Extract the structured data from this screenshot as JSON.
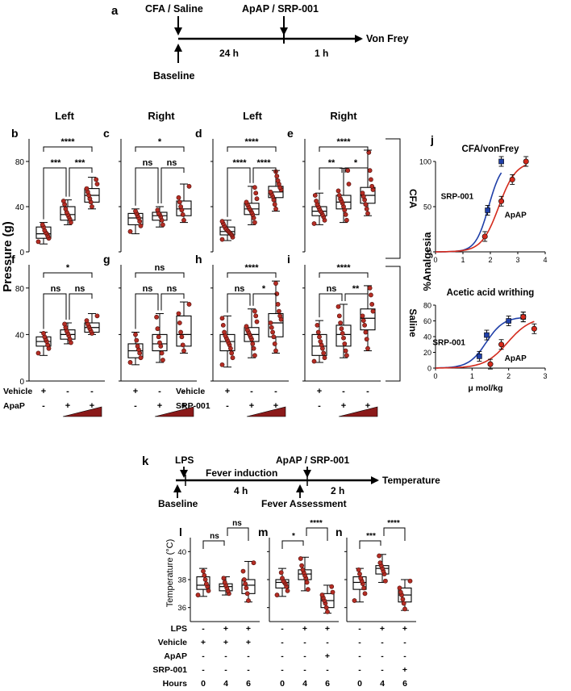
{
  "timeline_a": {
    "letter": "a",
    "label_top_left": "CFA / Saline",
    "label_top_right": "ApAP / SRP-001",
    "label_end": "Von Frey",
    "label_bottom": "Baseline",
    "seg1": "24 h",
    "seg2": "1 h"
  },
  "column_titles": [
    "Left",
    "Right",
    "Left",
    "Right"
  ],
  "row_labels": {
    "top": "CFA",
    "bottom": "Saline"
  },
  "y_axis_title": "Pressure (g)",
  "vf_ticks": [
    "0",
    "40",
    "80"
  ],
  "vf_panels": [
    {
      "letter": "b",
      "sig": [
        "****",
        "***",
        "***"
      ],
      "boxes": [
        {
          "q1": 12,
          "med": 16,
          "q3": 22,
          "lo": 7,
          "hi": 26,
          "pts": [
            9,
            12,
            14,
            16,
            17,
            19,
            22,
            24
          ]
        },
        {
          "q1": 28,
          "med": 33,
          "q3": 40,
          "lo": 24,
          "hi": 46,
          "pts": [
            26,
            29,
            31,
            33,
            35,
            38,
            42,
            45
          ]
        },
        {
          "q1": 44,
          "med": 50,
          "q3": 56,
          "lo": 38,
          "hi": 66,
          "pts": [
            40,
            44,
            47,
            50,
            53,
            56,
            60,
            64
          ]
        }
      ]
    },
    {
      "letter": "c",
      "sig": [
        "*",
        "ns",
        "ns"
      ],
      "boxes": [
        {
          "q1": 24,
          "med": 30,
          "q3": 34,
          "lo": 16,
          "hi": 38,
          "pts": [
            18,
            23,
            27,
            30,
            32,
            34,
            36
          ]
        },
        {
          "q1": 28,
          "med": 32,
          "q3": 35,
          "lo": 22,
          "hi": 40,
          "pts": [
            24,
            28,
            31,
            33,
            34,
            37
          ]
        },
        {
          "q1": 32,
          "med": 38,
          "q3": 45,
          "lo": 26,
          "hi": 60,
          "pts": [
            28,
            33,
            37,
            40,
            44,
            48,
            58
          ]
        }
      ]
    },
    {
      "letter": "d",
      "sig": [
        "****",
        "****",
        "****"
      ],
      "boxes": [
        {
          "q1": 15,
          "med": 18,
          "q3": 22,
          "lo": 10,
          "hi": 28,
          "pts": [
            11,
            13,
            15,
            16,
            17,
            18,
            19,
            20,
            21,
            23,
            25,
            27
          ]
        },
        {
          "q1": 33,
          "med": 38,
          "q3": 43,
          "lo": 24,
          "hi": 58,
          "pts": [
            26,
            30,
            33,
            35,
            37,
            38,
            40,
            42,
            44,
            47,
            52,
            57
          ]
        },
        {
          "q1": 48,
          "med": 53,
          "q3": 58,
          "lo": 36,
          "hi": 72,
          "pts": [
            38,
            42,
            46,
            49,
            51,
            53,
            55,
            57,
            60,
            63,
            67,
            71
          ]
        }
      ]
    },
    {
      "letter": "e",
      "sig": [
        "****",
        "**",
        "*"
      ],
      "boxes": [
        {
          "q1": 32,
          "med": 36,
          "q3": 40,
          "lo": 24,
          "hi": 52,
          "pts": [
            25,
            28,
            31,
            33,
            35,
            36,
            38,
            40,
            42,
            45,
            50
          ]
        },
        {
          "q1": 38,
          "med": 44,
          "q3": 50,
          "lo": 26,
          "hi": 74,
          "pts": [
            28,
            33,
            37,
            40,
            43,
            45,
            47,
            50,
            54,
            60,
            72
          ]
        },
        {
          "q1": 43,
          "med": 50,
          "q3": 57,
          "lo": 32,
          "hi": 90,
          "pts": [
            34,
            38,
            42,
            46,
            49,
            52,
            55,
            58,
            64,
            72,
            88
          ]
        }
      ]
    },
    {
      "letter": "f",
      "sig": [
        "*",
        "ns",
        "ns"
      ],
      "boxes": [
        {
          "q1": 30,
          "med": 34,
          "q3": 38,
          "lo": 22,
          "hi": 42,
          "pts": [
            24,
            28,
            31,
            34,
            36,
            38,
            41
          ]
        },
        {
          "q1": 36,
          "med": 40,
          "q3": 44,
          "lo": 32,
          "hi": 50,
          "pts": [
            33,
            36,
            39,
            41,
            43,
            46,
            49
          ]
        },
        {
          "q1": 42,
          "med": 46,
          "q3": 50,
          "lo": 40,
          "hi": 58,
          "pts": [
            41,
            43,
            45,
            47,
            49,
            52,
            56
          ]
        }
      ]
    },
    {
      "letter": "g",
      "sig": [
        "ns",
        "ns",
        "ns"
      ],
      "boxes": [
        {
          "q1": 20,
          "med": 26,
          "q3": 32,
          "lo": 14,
          "hi": 42,
          "pts": [
            16,
            20,
            24,
            27,
            30,
            35,
            40
          ]
        },
        {
          "q1": 26,
          "med": 32,
          "q3": 40,
          "lo": 16,
          "hi": 58,
          "pts": [
            18,
            24,
            30,
            33,
            38,
            45,
            55
          ]
        },
        {
          "q1": 30,
          "med": 40,
          "q3": 56,
          "lo": 24,
          "hi": 68,
          "pts": [
            26,
            31,
            38,
            42,
            50,
            58,
            66
          ]
        }
      ]
    },
    {
      "letter": "h",
      "sig": [
        "****",
        "ns",
        "*"
      ],
      "boxes": [
        {
          "q1": 26,
          "med": 34,
          "q3": 40,
          "lo": 12,
          "hi": 56,
          "pts": [
            14,
            20,
            24,
            28,
            31,
            33,
            35,
            37,
            39,
            42,
            48,
            54
          ]
        },
        {
          "q1": 34,
          "med": 40,
          "q3": 46,
          "lo": 20,
          "hi": 62,
          "pts": [
            22,
            28,
            32,
            36,
            38,
            40,
            42,
            44,
            47,
            51,
            56,
            60
          ]
        },
        {
          "q1": 38,
          "med": 50,
          "q3": 58,
          "lo": 24,
          "hi": 86,
          "pts": [
            26,
            32,
            38,
            42,
            46,
            50,
            53,
            56,
            60,
            66,
            75,
            84
          ]
        }
      ]
    },
    {
      "letter": "i",
      "sig": [
        "****",
        "ns",
        "**"
      ],
      "boxes": [
        {
          "q1": 22,
          "med": 30,
          "q3": 40,
          "lo": 16,
          "hi": 52,
          "pts": [
            17,
            20,
            24,
            28,
            31,
            34,
            38,
            42,
            48
          ]
        },
        {
          "q1": 30,
          "med": 40,
          "q3": 48,
          "lo": 20,
          "hi": 66,
          "pts": [
            22,
            26,
            32,
            37,
            41,
            45,
            50,
            56,
            64
          ]
        },
        {
          "q1": 44,
          "med": 54,
          "q3": 62,
          "lo": 26,
          "hi": 82,
          "pts": [
            28,
            36,
            42,
            48,
            52,
            56,
            60,
            66,
            74,
            80
          ]
        }
      ]
    }
  ],
  "treatment_table": {
    "rows": [
      {
        "label": "Vehicle",
        "left": [
          "+",
          "-",
          "-"
        ],
        "right": [
          "+",
          "-",
          "-"
        ],
        "label_right": "Vehicle"
      },
      {
        "label": "ApaP",
        "left": [
          "-",
          "+",
          "+"
        ],
        "right": [
          "-",
          "+",
          "+"
        ],
        "label_right": "SRP-001"
      }
    ]
  },
  "panel_j": {
    "letter": "j",
    "chart_data": [
      {
        "type": "scatter",
        "title": "CFA/vonFrey",
        "xlim": [
          0,
          4
        ],
        "ylim": [
          0,
          100
        ],
        "xticks": [
          "0",
          "1",
          "2",
          "3",
          "4"
        ],
        "yticks": [
          "0",
          "50",
          "100"
        ],
        "series": [
          {
            "name": "SRP-001",
            "color": "#1f3fa8",
            "x": [
              1.9,
              2.4
            ],
            "y": [
              46,
              100
            ]
          },
          {
            "name": "ApAP",
            "color": "#d42a1c",
            "x": [
              1.8,
              2.4,
              2.8,
              3.3
            ],
            "y": [
              17,
              56,
              80,
              100
            ]
          }
        ]
      },
      {
        "type": "scatter",
        "title": "Acetic acid writhing",
        "xlim": [
          0,
          3
        ],
        "ylim": [
          0,
          80
        ],
        "xticks": [
          "0",
          "1",
          "2",
          "3"
        ],
        "yticks": [
          "0",
          "20",
          "40",
          "60",
          "80"
        ],
        "xlabel": "μ mol/kg",
        "series": [
          {
            "name": "SRP-001",
            "color": "#1f3fa8",
            "x": [
              1.2,
              1.4,
              2.0,
              2.4
            ],
            "y": [
              15,
              42,
              60,
              65
            ]
          },
          {
            "name": "ApAP",
            "color": "#d42a1c",
            "x": [
              1.5,
              1.8,
              2.4,
              2.7
            ],
            "y": [
              5,
              30,
              65,
              50
            ]
          }
        ]
      }
    ],
    "ylabel": "%Analgesia"
  },
  "timeline_k": {
    "letter": "k",
    "lps": "LPS",
    "baseline": "Baseline",
    "fever_induction": "Fever induction",
    "seg1": "4 h",
    "fever_assessment": "Fever Assessment",
    "drug": "ApAP / SRP-001",
    "seg2": "2 h",
    "end": "Temperature"
  },
  "temp_axis_title": "Temperature (°C)",
  "temp_ticks": [
    "36",
    "38",
    "40"
  ],
  "temp_panels": [
    {
      "letter": "l",
      "sig": [
        "ns",
        "ns"
      ],
      "sig_type": "adjacent",
      "boxes": [
        {
          "q1": 37.3,
          "med": 37.6,
          "q3": 38.2,
          "lo": 36.8,
          "hi": 38.8,
          "pts": [
            36.9,
            37.2,
            37.5,
            37.7,
            38.0,
            38.3,
            38.6
          ]
        },
        {
          "q1": 37.2,
          "med": 37.5,
          "q3": 37.7,
          "lo": 36.9,
          "hi": 38.2,
          "pts": [
            37.0,
            37.2,
            37.4,
            37.6,
            37.8,
            38.1
          ]
        },
        {
          "q1": 37.0,
          "med": 37.6,
          "q3": 38.0,
          "lo": 36.4,
          "hi": 39.3,
          "pts": [
            36.5,
            37.0,
            37.4,
            37.7,
            38.0,
            38.6,
            39.2
          ]
        }
      ]
    },
    {
      "letter": "m",
      "sig": [
        "*",
        "****"
      ],
      "sig_type": "adjacent",
      "boxes": [
        {
          "q1": 37.4,
          "med": 37.8,
          "q3": 38.0,
          "lo": 36.8,
          "hi": 38.8,
          "pts": [
            36.9,
            37.2,
            37.5,
            37.7,
            37.8,
            37.9,
            38.1,
            38.5
          ]
        },
        {
          "q1": 38.0,
          "med": 38.4,
          "q3": 38.7,
          "lo": 37.2,
          "hi": 39.6,
          "pts": [
            37.3,
            37.8,
            38.1,
            38.3,
            38.5,
            38.7,
            39.0,
            39.5
          ]
        },
        {
          "q1": 36.0,
          "med": 36.5,
          "q3": 37.0,
          "lo": 35.6,
          "hi": 37.6,
          "pts": [
            35.7,
            36.0,
            36.3,
            36.5,
            36.7,
            36.9,
            37.1,
            37.5
          ]
        }
      ]
    },
    {
      "letter": "n",
      "sig": [
        "***",
        "****"
      ],
      "sig_type": "adjacent",
      "boxes": [
        {
          "q1": 37.3,
          "med": 37.8,
          "q3": 38.2,
          "lo": 36.4,
          "hi": 38.8,
          "pts": [
            36.5,
            37.0,
            37.4,
            37.7,
            37.9,
            38.1,
            38.4,
            38.7
          ]
        },
        {
          "q1": 38.4,
          "med": 38.8,
          "q3": 39.0,
          "lo": 37.8,
          "hi": 39.8,
          "pts": [
            37.9,
            38.4,
            38.6,
            38.8,
            39.0,
            39.2,
            39.7
          ]
        },
        {
          "q1": 36.4,
          "med": 36.9,
          "q3": 37.4,
          "lo": 35.8,
          "hi": 38.0,
          "pts": [
            35.9,
            36.3,
            36.6,
            36.9,
            37.1,
            37.4,
            37.9
          ]
        }
      ]
    }
  ],
  "temp_table": {
    "rows": [
      {
        "label": "LPS",
        "cols": [
          [
            "-",
            "+",
            "+"
          ],
          [
            "-",
            "+",
            "+"
          ],
          [
            "-",
            "+",
            "+"
          ]
        ]
      },
      {
        "label": "Vehicle",
        "cols": [
          [
            "+",
            "+",
            "+"
          ],
          [
            "-",
            "-",
            "-"
          ],
          [
            "-",
            "-",
            "-"
          ]
        ]
      },
      {
        "label": "ApAP",
        "cols": [
          [
            "-",
            "-",
            "-"
          ],
          [
            "-",
            "-",
            "+"
          ],
          [
            "-",
            "-",
            "-"
          ]
        ]
      },
      {
        "label": "SRP-001",
        "cols": [
          [
            "-",
            "-",
            "-"
          ],
          [
            "-",
            "-",
            "-"
          ],
          [
            "-",
            "-",
            "+"
          ]
        ]
      },
      {
        "label": "Hours",
        "cols": [
          [
            "0",
            "4",
            "6"
          ],
          [
            "0",
            "4",
            "6"
          ],
          [
            "0",
            "4",
            "6"
          ]
        ]
      }
    ]
  },
  "colors": {
    "dot": "#b52d24",
    "blue": "#1f3fa8",
    "red": "#d42a1c",
    "wedge": "#8b1a1a"
  }
}
